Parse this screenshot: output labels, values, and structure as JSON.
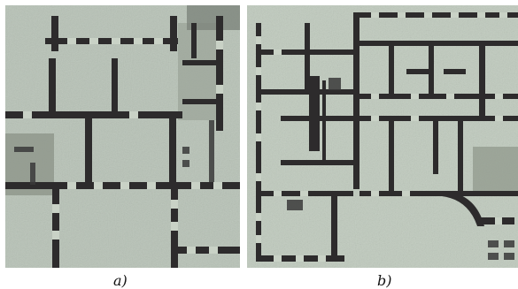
{
  "figure": {
    "panel_a": {
      "caption": "a)"
    },
    "panel_b": {
      "caption": "b)"
    }
  },
  "colors": {
    "background": "#ffffff",
    "paper": "#b7c2b6",
    "paper_light": "#c9d2c6",
    "ink": "#2d2b2c",
    "shadow": "#6f786f"
  }
}
